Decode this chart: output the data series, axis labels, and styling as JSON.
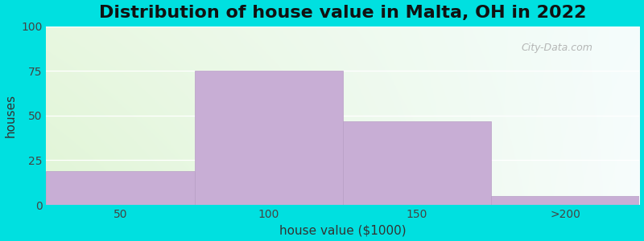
{
  "title": "Distribution of house value in Malta, OH in 2022",
  "xlabel": "house value ($1000)",
  "ylabel": "houses",
  "categories": [
    "50",
    "100",
    "150",
    ">200"
  ],
  "values": [
    19,
    75,
    47,
    5
  ],
  "bar_color": "#c8aed5",
  "bar_edge_color": "#b89ec5",
  "ylim": [
    0,
    100
  ],
  "yticks": [
    0,
    25,
    50,
    75,
    100
  ],
  "background_outer": "#00e0e0",
  "watermark": "City-Data.com",
  "title_fontsize": 16,
  "axis_label_fontsize": 11,
  "tick_fontsize": 10
}
